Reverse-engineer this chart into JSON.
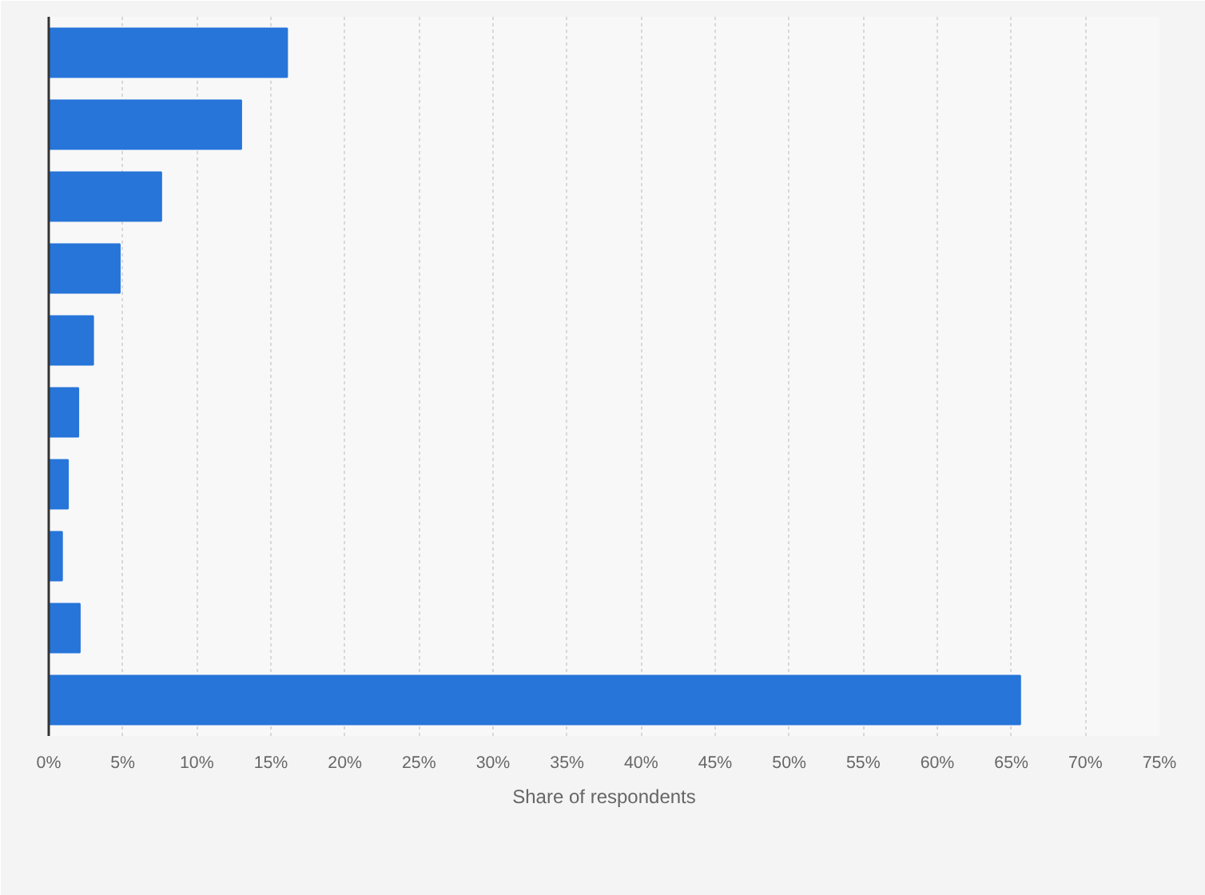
{
  "chart_data": {
    "type": "bar",
    "orientation": "horizontal",
    "xlabel": "Share of respondents",
    "categories": [
      null,
      null,
      null,
      null,
      null,
      null,
      null,
      null,
      null,
      null
    ],
    "values": [
      16.1,
      13.0,
      7.6,
      4.8,
      3.0,
      2.0,
      1.3,
      0.9,
      2.1,
      65.6
    ],
    "color": "#2775d9",
    "xlim": [
      0,
      75
    ],
    "xticks": [
      {
        "value": 0,
        "label": "0%"
      },
      {
        "value": 5,
        "label": "5%"
      },
      {
        "value": 10,
        "label": "10%"
      },
      {
        "value": 15,
        "label": "15%"
      },
      {
        "value": 20,
        "label": "20%"
      },
      {
        "value": 25,
        "label": "25%"
      },
      {
        "value": 30,
        "label": "30%"
      },
      {
        "value": 35,
        "label": "35%"
      },
      {
        "value": 40,
        "label": "40%"
      },
      {
        "value": 45,
        "label": "45%"
      },
      {
        "value": 50,
        "label": "50%"
      },
      {
        "value": 55,
        "label": "55%"
      },
      {
        "value": 60,
        "label": "60%"
      },
      {
        "value": 65,
        "label": "65%"
      },
      {
        "value": 70,
        "label": "70%"
      },
      {
        "value": 75,
        "label": "75%"
      }
    ],
    "grid": "x",
    "tick_labels": "x"
  }
}
